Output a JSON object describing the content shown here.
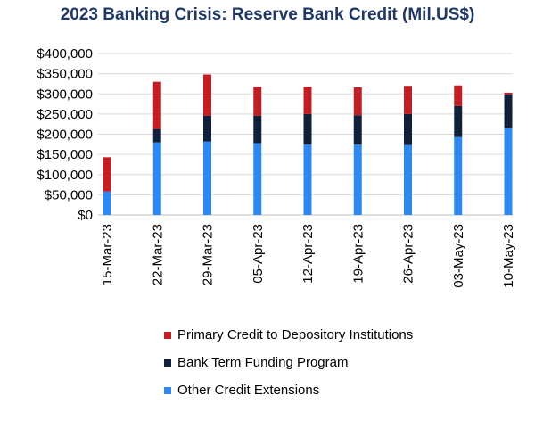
{
  "chart_data": {
    "type": "bar",
    "stacked": true,
    "title": "2023 Banking Crisis: Reserve Bank Credit (Mil.US$)",
    "categories": [
      "15-Mar-23",
      "22-Mar-23",
      "29-Mar-23",
      "05-Apr-23",
      "12-Apr-23",
      "19-Apr-23",
      "26-Apr-23",
      "03-May-23",
      "10-May-23"
    ],
    "series": [
      {
        "name": "Other Credit Extensions",
        "color": "#2f87f0",
        "values": [
          58000,
          180000,
          182000,
          178000,
          174000,
          174000,
          173000,
          193000,
          215000
        ]
      },
      {
        "name": "Bank Term Funding Program",
        "color": "#10203a",
        "values": [
          0,
          33000,
          64000,
          68000,
          76000,
          73000,
          77000,
          77000,
          84000
        ]
      },
      {
        "name": "Primary Credit to Depository Institutions",
        "color": "#c01f25",
        "values": [
          85000,
          117000,
          102000,
          72000,
          68000,
          69000,
          70000,
          51000,
          4000
        ]
      }
    ],
    "y_ticks": [
      "$0",
      "$50,000",
      "$100,000",
      "$150,000",
      "$200,000",
      "$250,000",
      "$300,000",
      "$350,000",
      "$400,000"
    ],
    "ylim": [
      0,
      400000
    ],
    "grid": true,
    "legend": "bottom",
    "legend_order": [
      "Primary Credit to Depository Institutions",
      "Bank Term Funding Program",
      "Other Credit Extensions"
    ]
  }
}
